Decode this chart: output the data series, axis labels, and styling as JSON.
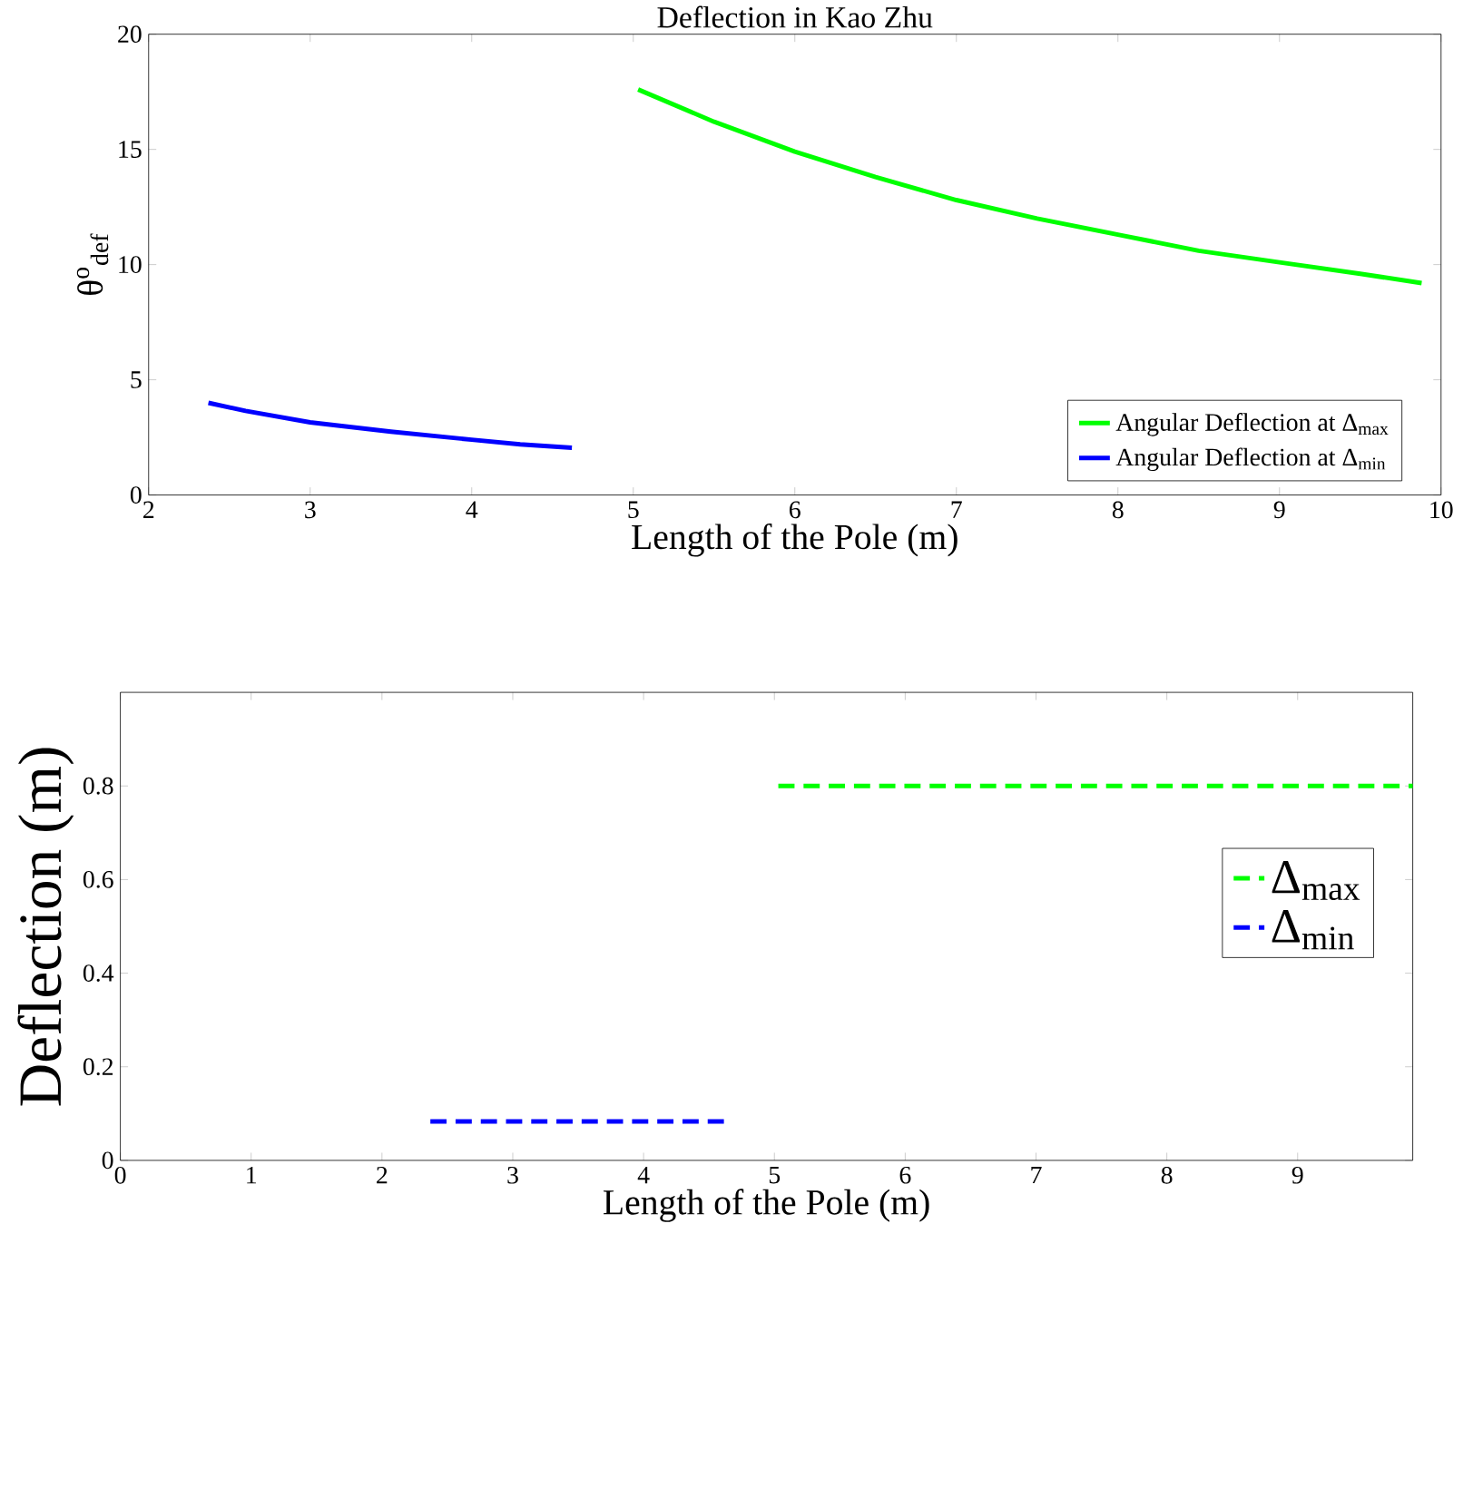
{
  "chart_data": [
    {
      "type": "line",
      "title": "Deflection in Kao Zhu",
      "xlabel": "Length of the Pole (m)",
      "ylabel": "θ$^{o}$$_{def}$",
      "xlim": [
        2,
        10
      ],
      "xticks": [
        2,
        3,
        4,
        5,
        6,
        7,
        8,
        9,
        10
      ],
      "ylim": [
        0,
        20
      ],
      "yticks": [
        0,
        5,
        10,
        15,
        20
      ],
      "legend": "bottom right",
      "grid": false,
      "line_style": "solid",
      "series": [
        {
          "name": "Angular Deflection at Δ$_{max}$",
          "color": "#00ff00",
          "x": [
            5.03,
            5.5,
            6,
            6.5,
            7,
            7.5,
            8,
            8.5,
            9,
            9.5,
            9.88
          ],
          "values": [
            17.6,
            16.2,
            14.9,
            13.8,
            12.8,
            12.0,
            11.3,
            10.6,
            10.1,
            9.6,
            9.2
          ]
        },
        {
          "name": "Angular Deflection at Δ$_{min}$",
          "color": "#0000ff",
          "x": [
            2.37,
            2.6,
            3,
            3.5,
            4,
            4.3,
            4.62
          ],
          "values": [
            4.0,
            3.65,
            3.15,
            2.75,
            2.4,
            2.2,
            2.05
          ]
        }
      ]
    },
    {
      "type": "line",
      "xlabel": "Length of the Pole (m)",
      "ylabel": "Deflection (m)",
      "xlim": [
        0,
        9.88
      ],
      "xticks": [
        0,
        1,
        2,
        3,
        4,
        5,
        6,
        7,
        8,
        9
      ],
      "ylim": [
        0,
        1
      ],
      "yticks": [
        0,
        0.2,
        0.4,
        0.6,
        0.8
      ],
      "legend": "right",
      "grid": false,
      "line_style": "dashed",
      "series": [
        {
          "name": "Δ$_{max}$",
          "color": "#00ff00",
          "x": [
            5.03,
            9.88
          ],
          "values": [
            0.8,
            0.8
          ]
        },
        {
          "name": "Δ$_{min}$",
          "color": "#0000ff",
          "x": [
            2.37,
            4.62
          ],
          "values": [
            0.083,
            0.083
          ]
        }
      ]
    }
  ]
}
